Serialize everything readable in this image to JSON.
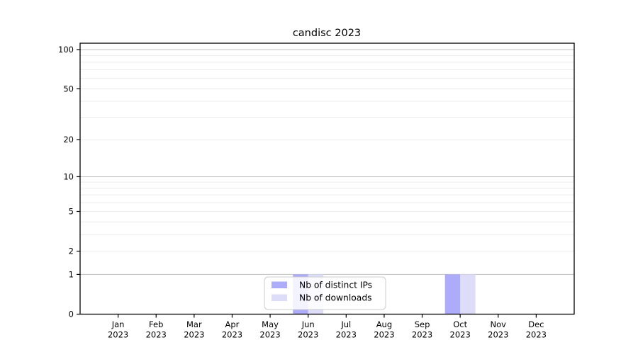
{
  "title": "candisc 2023",
  "chart_data": {
    "type": "bar",
    "title": "candisc 2023",
    "categories": [
      "Jan",
      "Feb",
      "Mar",
      "Apr",
      "May",
      "Jun",
      "Jul",
      "Aug",
      "Sep",
      "Oct",
      "Nov",
      "Dec"
    ],
    "year_label": "2023",
    "series": [
      {
        "name": "Nb of distinct IPs",
        "color": "#acacfa",
        "values": [
          0,
          0,
          0,
          0,
          0,
          1,
          0,
          0,
          0,
          1,
          0,
          0
        ]
      },
      {
        "name": "Nb of downloads",
        "color": "#ddddfa",
        "values": [
          0,
          0,
          0,
          0,
          0,
          1,
          0,
          0,
          0,
          1,
          0,
          0
        ]
      }
    ],
    "yscale": "log1p",
    "ytick_labels": [
      "0",
      "1",
      "2",
      "5",
      "10",
      "20",
      "50",
      "100"
    ],
    "yticks": [
      0,
      1,
      2,
      5,
      10,
      20,
      50,
      100
    ],
    "major_gridlines": [
      1,
      10,
      100
    ],
    "minor_gridlines": [
      2,
      3,
      4,
      5,
      6,
      7,
      8,
      9,
      20,
      30,
      40,
      50,
      60,
      70,
      80,
      90
    ],
    "ylim_top": 112,
    "legend_position": "lower center",
    "grid": true,
    "colors": {
      "axis": "#000000",
      "grid_major": "#c0c0c0",
      "grid_minor": "#ececec",
      "legend_border": "#cccccc",
      "legend_bg": "#ffffff"
    }
  }
}
